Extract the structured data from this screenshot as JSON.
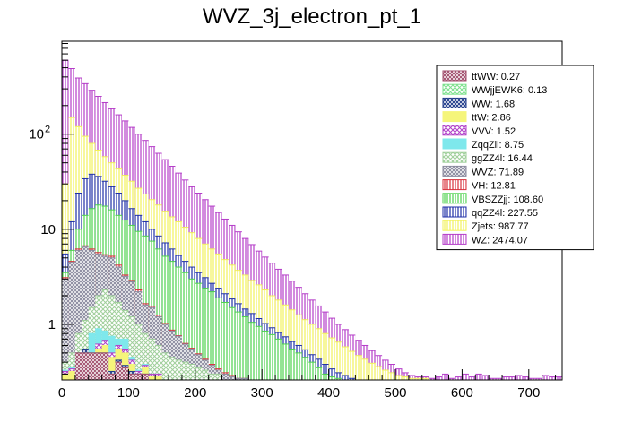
{
  "chart_data": {
    "type": "bar",
    "stacked": true,
    "title": "WVZ_3j_electron_pt_1",
    "xlabel": "",
    "ylabel": "",
    "xlim": [
      0,
      750
    ],
    "ylim": [
      0.26,
      950
    ],
    "yscale": "log",
    "bin_width": 10,
    "x_ticks": [
      0,
      100,
      200,
      300,
      400,
      500,
      600,
      700
    ],
    "x_tick_labels": [
      "0",
      "100",
      "200",
      "300",
      "400",
      "500",
      "600",
      "700"
    ],
    "y_ticks": [
      1,
      10,
      100
    ],
    "y_tick_labels": [
      "1",
      "10",
      "10^2"
    ],
    "grid": false,
    "legend_position": "top-right",
    "series": [
      {
        "name": "ttWW: 0.27",
        "color": "#a04d6b",
        "pattern": "hatch-cross-dense",
        "cumulative": [
          0,
          0,
          0.5,
          0.5,
          0.5,
          0.5,
          0.5,
          0.3,
          0.4,
          0.35,
          0.3,
          0.3,
          0.3,
          0.2,
          0.2,
          0,
          0,
          0,
          0,
          0,
          0,
          0,
          0,
          0,
          0,
          0,
          0,
          0,
          0,
          0,
          0,
          0,
          0,
          0,
          0,
          0,
          0,
          0,
          0,
          0,
          0,
          0,
          0,
          0,
          0,
          0,
          0,
          0,
          0,
          0,
          0,
          0,
          0,
          0,
          0,
          0,
          0,
          0,
          0,
          0,
          0,
          0,
          0,
          0,
          0,
          0,
          0,
          0,
          0,
          0,
          0,
          0,
          0,
          0,
          0
        ]
      },
      {
        "name": "WWjjEWK6: 0.13",
        "color": "#7de08d",
        "pattern": "hatch-cross",
        "cumulative": [
          0,
          0,
          0.5,
          0.5,
          0.5,
          0.5,
          0.5,
          0.3,
          0.4,
          0.35,
          0.3,
          0.3,
          0.3,
          0.2,
          0.2,
          0,
          0,
          0,
          0,
          0,
          0,
          0,
          0,
          0,
          0,
          0,
          0,
          0,
          0,
          0,
          0,
          0,
          0,
          0,
          0,
          0,
          0,
          0,
          0,
          0,
          0,
          0,
          0,
          0,
          0,
          0,
          0,
          0,
          0,
          0,
          0,
          0,
          0,
          0,
          0,
          0,
          0,
          0,
          0,
          0,
          0,
          0,
          0,
          0,
          0,
          0,
          0,
          0,
          0,
          0,
          0,
          0,
          0,
          0,
          0
        ]
      },
      {
        "name": "WW: 1.68",
        "color": "#1f3a8a",
        "pattern": "hatch-cross-dense",
        "cumulative": [
          0,
          0,
          0.5,
          0.55,
          0.5,
          0.5,
          0.5,
          0.32,
          0.42,
          0.37,
          0.32,
          0.3,
          0.3,
          0.22,
          0.2,
          0,
          0,
          0,
          0,
          0,
          0,
          0,
          0,
          0,
          0,
          0,
          0,
          0,
          0,
          0,
          0,
          0,
          0,
          0,
          0,
          0,
          0,
          0,
          0,
          0,
          0,
          0,
          0,
          0,
          0,
          0,
          0,
          0,
          0,
          0,
          0,
          0,
          0,
          0,
          0,
          0,
          0,
          0,
          0,
          0,
          0,
          0,
          0,
          0,
          0,
          0,
          0,
          0,
          0,
          0,
          0,
          0,
          0,
          0,
          0
        ]
      },
      {
        "name": "ttW: 2.86",
        "color": "#f5f57a",
        "pattern": "solid",
        "cumulative": [
          0.3,
          0.32,
          0.32,
          0.3,
          0.42,
          0.55,
          0.6,
          0.45,
          0.55,
          0.5,
          0.38,
          0.3,
          0.35,
          0.28,
          0.28,
          0,
          0,
          0,
          0,
          0,
          0,
          0,
          0,
          0,
          0,
          0,
          0,
          0,
          0,
          0,
          0,
          0,
          0,
          0,
          0,
          0,
          0,
          0,
          0,
          0,
          0,
          0,
          0,
          0,
          0,
          0,
          0,
          0,
          0,
          0,
          0,
          0,
          0,
          0,
          0,
          0,
          0,
          0,
          0,
          0,
          0,
          0,
          0,
          0,
          0,
          0,
          0,
          0,
          0,
          0,
          0,
          0,
          0,
          0,
          0
        ]
      },
      {
        "name": "VVV: 1.52",
        "color": "#b040c8",
        "pattern": "hatch-cross",
        "cumulative": [
          0.32,
          0.34,
          0.34,
          0.32,
          0.46,
          0.62,
          0.68,
          0.5,
          0.6,
          0.55,
          0.42,
          0.32,
          0.37,
          0.3,
          0.3,
          0,
          0,
          0,
          0,
          0,
          0,
          0,
          0,
          0,
          0,
          0,
          0,
          0,
          0,
          0,
          0,
          0,
          0,
          0,
          0,
          0,
          0,
          0,
          0,
          0,
          0,
          0,
          0,
          0,
          0,
          0,
          0,
          0,
          0,
          0,
          0,
          0,
          0,
          0,
          0,
          0,
          0,
          0,
          0,
          0,
          0,
          0,
          0,
          0,
          0,
          0,
          0,
          0,
          0,
          0,
          0,
          0,
          0,
          0,
          0
        ]
      },
      {
        "name": "ZqqZll: 8.75",
        "color": "#7ee8ec",
        "pattern": "solid",
        "cumulative": [
          0.33,
          0.35,
          0.45,
          0.52,
          0.8,
          0.9,
          0.85,
          0.75,
          0.7,
          0.7,
          0.45,
          0.33,
          0.38,
          0.3,
          0.3,
          0,
          0,
          0,
          0,
          0,
          0,
          0,
          0,
          0,
          0,
          0,
          0,
          0,
          0,
          0,
          0,
          0,
          0,
          0,
          0,
          0,
          0,
          0,
          0,
          0,
          0,
          0,
          0,
          0,
          0,
          0,
          0,
          0,
          0,
          0,
          0,
          0,
          0,
          0,
          0,
          0,
          0,
          0,
          0,
          0,
          0,
          0,
          0,
          0,
          0,
          0,
          0,
          0,
          0,
          0,
          0,
          0,
          0,
          0,
          0
        ]
      },
      {
        "name": "ggZZ4l: 16.44",
        "color": "#9fcf9a",
        "pattern": "hatch-cross",
        "cumulative": [
          0.4,
          0.5,
          0.8,
          1.1,
          1.5,
          2.0,
          2.3,
          2.0,
          1.7,
          1.4,
          1.2,
          1.0,
          0.8,
          0.7,
          0.6,
          0.5,
          0.45,
          0.42,
          0.4,
          0.38,
          0.35,
          0.33,
          0.3,
          0.3,
          0,
          0,
          0,
          0,
          0,
          0,
          0,
          0,
          0,
          0,
          0,
          0,
          0,
          0,
          0,
          0,
          0,
          0,
          0,
          0,
          0,
          0,
          0,
          0,
          0,
          0,
          0,
          0,
          0,
          0,
          0,
          0,
          0,
          0,
          0,
          0,
          0,
          0,
          0,
          0,
          0,
          0,
          0,
          0,
          0,
          0,
          0,
          0,
          0,
          0,
          0
        ]
      },
      {
        "name": "WVZ: 71.89",
        "color": "#8a8a9e",
        "pattern": "hatch-cross-dense",
        "cumulative": [
          3.0,
          4.5,
          6.0,
          6.5,
          6.0,
          5.5,
          5.2,
          5.0,
          4.0,
          3.2,
          2.8,
          2.2,
          1.6,
          1.5,
          1.2,
          1.0,
          0.85,
          0.75,
          0.62,
          0.55,
          0.48,
          0.42,
          0.37,
          0.33,
          0.3,
          0.28,
          0.27,
          0.27,
          0,
          0,
          0,
          0,
          0,
          0,
          0,
          0,
          0,
          0,
          0,
          0,
          0,
          0,
          0,
          0,
          0,
          0,
          0,
          0,
          0,
          0,
          0,
          0,
          0,
          0,
          0,
          0,
          0,
          0,
          0,
          0,
          0,
          0,
          0,
          0,
          0,
          0,
          0,
          0,
          0,
          0,
          0,
          0,
          0,
          0,
          0
        ]
      },
      {
        "name": "VH: 12.81",
        "color": "#d8323c",
        "pattern": "hatch-vertical",
        "cumulative": [
          3.1,
          4.6,
          6.2,
          6.7,
          6.2,
          5.7,
          5.4,
          5.2,
          4.2,
          3.3,
          2.9,
          2.3,
          1.65,
          1.55,
          1.25,
          1.02,
          0.87,
          0.76,
          0.63,
          0.56,
          0.49,
          0.43,
          0.38,
          0.34,
          0.31,
          0.29,
          0.27,
          0.27,
          0,
          0,
          0,
          0,
          0,
          0,
          0,
          0,
          0,
          0,
          0,
          0,
          0,
          0,
          0,
          0,
          0,
          0,
          0,
          0,
          0,
          0,
          0,
          0,
          0,
          0,
          0,
          0,
          0,
          0,
          0,
          0,
          0,
          0,
          0,
          0,
          0,
          0,
          0,
          0,
          0,
          0,
          0,
          0,
          0,
          0,
          0
        ]
      },
      {
        "name": "VBSZZjj: 108.60",
        "color": "#4dd24d",
        "pattern": "hatch-vertical",
        "cumulative": [
          3.5,
          6.0,
          10.0,
          14.0,
          16.5,
          18.0,
          17.5,
          16.0,
          14.0,
          12.5,
          11.0,
          9.5,
          8.5,
          7.5,
          6.2,
          5.2,
          4.6,
          4.0,
          3.5,
          3.0,
          2.7,
          2.4,
          2.2,
          1.9,
          1.7,
          1.5,
          1.35,
          1.2,
          1.05,
          0.95,
          0.85,
          0.78,
          0.7,
          0.62,
          0.55,
          0.5,
          0.45,
          0.4,
          0.35,
          0.3,
          0.28,
          0.27,
          0,
          0,
          0,
          0,
          0,
          0,
          0,
          0,
          0,
          0,
          0,
          0,
          0,
          0,
          0,
          0,
          0,
          0,
          0,
          0,
          0,
          0,
          0,
          0,
          0,
          0,
          0,
          0,
          0,
          0,
          0,
          0,
          0
        ]
      },
      {
        "name": "qqZZ4l: 227.55",
        "color": "#1f2fa8",
        "pattern": "hatch-vertical",
        "cumulative": [
          5.5,
          12.0,
          24.0,
          34.0,
          38.0,
          36.0,
          32.0,
          28.0,
          24.0,
          20.0,
          16.5,
          14.0,
          12.0,
          10.0,
          8.5,
          7.2,
          6.2,
          5.3,
          4.6,
          4.0,
          3.5,
          3.1,
          2.7,
          2.4,
          2.1,
          1.85,
          1.65,
          1.45,
          1.3,
          1.15,
          1.02,
          0.92,
          0.82,
          0.74,
          0.66,
          0.6,
          0.54,
          0.48,
          0.43,
          0.38,
          0.34,
          0.31,
          0.29,
          0.27,
          0,
          0,
          0,
          0,
          0,
          0,
          0,
          0,
          0,
          0,
          0,
          0,
          0,
          0,
          0,
          0,
          0,
          0,
          0,
          0,
          0,
          0,
          0,
          0,
          0,
          0,
          0,
          0,
          0,
          0,
          0
        ]
      },
      {
        "name": "Zjets: 987.77",
        "color": "#f2f25a",
        "pattern": "hatch-vertical",
        "cumulative": [
          30.0,
          150.0,
          120.0,
          95.0,
          80.0,
          68.0,
          58.0,
          50.0,
          43.0,
          37.0,
          32.0,
          27.0,
          23.5,
          20.5,
          18.0,
          15.5,
          13.5,
          12.0,
          10.5,
          9.2,
          8.0,
          7.0,
          6.2,
          5.5,
          4.8,
          4.2,
          3.7,
          3.3,
          2.9,
          2.6,
          2.3,
          2.0,
          1.8,
          1.6,
          1.42,
          1.26,
          1.12,
          1.0,
          0.9,
          0.8,
          0.72,
          0.65,
          0.58,
          0.52,
          0.47,
          0.43,
          0.39,
          0.36,
          0.33,
          0.31,
          0.29,
          0.28,
          0.27,
          0.27,
          0.27,
          0,
          0,
          0,
          0,
          0,
          0,
          0,
          0,
          0,
          0,
          0,
          0,
          0,
          0,
          0,
          0,
          0,
          0,
          0,
          0
        ]
      },
      {
        "name": "WZ: 2474.07",
        "color": "#b43cc8",
        "pattern": "hatch-vertical",
        "cumulative": [
          600.0,
          490.0,
          390.0,
          340.0,
          290.0,
          250.0,
          215.0,
          185.0,
          160.0,
          138.0,
          118.0,
          100.0,
          86.0,
          74.0,
          63.0,
          54.0,
          46.0,
          39.0,
          33.0,
          28.0,
          24.0,
          20.5,
          17.5,
          15.0,
          12.8,
          11.0,
          9.4,
          8.0,
          6.9,
          5.9,
          5.1,
          4.4,
          3.8,
          3.3,
          2.85,
          2.45,
          2.1,
          1.8,
          1.56,
          1.35,
          1.16,
          1.0,
          0.88,
          0.77,
          0.68,
          0.6,
          0.53,
          0.47,
          0.42,
          0.38,
          0.34,
          0.31,
          0.29,
          0.28,
          0.28,
          0.27,
          0.28,
          0.3,
          0.27,
          0.28,
          0.3,
          0.28,
          0.3,
          0.29,
          0.27,
          0.27,
          0.28,
          0.28,
          0.29,
          0.28,
          0.27,
          0.27,
          0.29,
          0.28,
          0.28
        ]
      }
    ]
  }
}
